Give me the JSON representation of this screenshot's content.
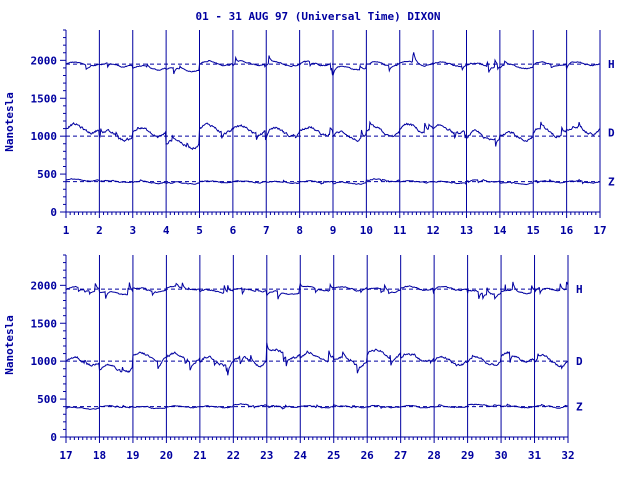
{
  "title": "01 - 31 AUG 97 (Universal Time) DIXON",
  "colors": {
    "ink": "#0000a0",
    "background": "#ffffff"
  },
  "chart_data": [
    {
      "type": "line",
      "title": "01 - 31 AUG 97 (Universal Time) DIXON",
      "xlabel": "",
      "ylabel": "Nanotesla",
      "x_ticks": [
        "1",
        "2",
        "3",
        "4",
        "5",
        "6",
        "7",
        "8",
        "9",
        "10",
        "11",
        "12",
        "13",
        "14",
        "15",
        "16",
        "17"
      ],
      "xlim": [
        1,
        17
      ],
      "y_ticks": [
        "0",
        "500",
        "1000",
        "1500",
        "2000"
      ],
      "ylim": [
        0,
        2400
      ],
      "grid": "vertical lines at each day",
      "series": [
        {
          "name": "H",
          "baseline": 1950,
          "daily_values": [
            1950,
            1940,
            1900,
            1880,
            1960,
            1960,
            1950,
            1960,
            1900,
            1950,
            1960,
            1950,
            1940,
            1920,
            1950,
            1960
          ]
        },
        {
          "name": "D",
          "baseline": 1050,
          "daily_values": [
            1100,
            1000,
            1050,
            900,
            1100,
            1080,
            1060,
            1070,
            1000,
            1050,
            1100,
            1080,
            1000,
            1000,
            1050,
            1080
          ]
        },
        {
          "name": "Z",
          "baseline": 400,
          "daily_values": [
            420,
            400,
            390,
            380,
            400,
            400,
            390,
            400,
            380,
            420,
            400,
            390,
            410,
            380,
            400,
            400
          ]
        }
      ],
      "reference_lines": [
        1950,
        1000,
        400
      ]
    },
    {
      "type": "line",
      "title": "",
      "xlabel": "",
      "ylabel": "Nanotesla",
      "x_ticks": [
        "17",
        "18",
        "19",
        "20",
        "21",
        "22",
        "23",
        "24",
        "25",
        "26",
        "27",
        "28",
        "29",
        "30",
        "31",
        "32"
      ],
      "xlim": [
        17,
        32
      ],
      "y_ticks": [
        "0",
        "500",
        "1000",
        "1500",
        "2000"
      ],
      "ylim": [
        0,
        2400
      ],
      "grid": "vertical lines at each day",
      "series": [
        {
          "name": "H",
          "baseline": 1950,
          "daily_values": [
            1950,
            1900,
            1940,
            1960,
            1920,
            1940,
            1900,
            1960,
            1960,
            1940,
            1960,
            1960,
            1900,
            1920,
            1950
          ]
        },
        {
          "name": "D",
          "baseline": 1000,
          "daily_values": [
            1000,
            900,
            1050,
            1050,
            1000,
            1000,
            1100,
            1050,
            1000,
            1100,
            1050,
            1000,
            1000,
            1050,
            1000
          ]
        },
        {
          "name": "Z",
          "baseline": 400,
          "daily_values": [
            380,
            400,
            390,
            400,
            400,
            420,
            400,
            400,
            400,
            400,
            400,
            400,
            420,
            400,
            400
          ]
        }
      ],
      "reference_lines": [
        1950,
        1000,
        400
      ]
    }
  ]
}
